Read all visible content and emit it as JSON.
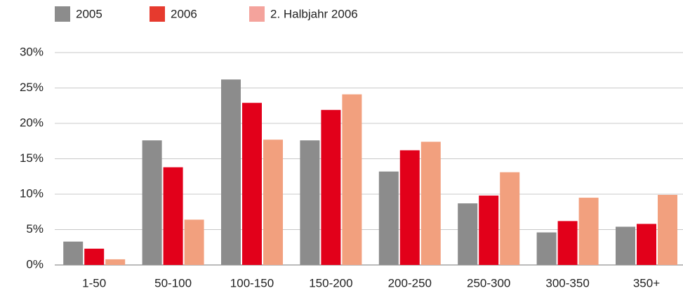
{
  "chart_data": {
    "type": "bar",
    "categories": [
      "1-50",
      "50-100",
      "100-150",
      "150-200",
      "200-250",
      "250-300",
      "300-350",
      "350+"
    ],
    "series": [
      {
        "name": "2005",
        "color": "#8c8c8c",
        "values": [
          3.3,
          17.6,
          26.2,
          17.6,
          13.2,
          8.7,
          4.6,
          5.4
        ]
      },
      {
        "name": "2006",
        "color": "#e2001a",
        "values": [
          2.3,
          13.8,
          22.9,
          21.9,
          16.2,
          9.8,
          6.2,
          5.8
        ]
      },
      {
        "name": "2. Halbjahr 2006",
        "color": "#f2a07e",
        "values": [
          0.8,
          6.4,
          17.7,
          24.1,
          17.4,
          13.1,
          9.5,
          9.9
        ]
      }
    ],
    "ylim": [
      0,
      30
    ],
    "yticks": [
      {
        "value": 0,
        "label": "0%"
      },
      {
        "value": 5,
        "label": "5%"
      },
      {
        "value": 10,
        "label": "10%"
      },
      {
        "value": 15,
        "label": "15%"
      },
      {
        "value": 20,
        "label": "20%"
      },
      {
        "value": 25,
        "label": "25%"
      },
      {
        "value": 30,
        "label": "30%"
      }
    ],
    "grid": true
  }
}
